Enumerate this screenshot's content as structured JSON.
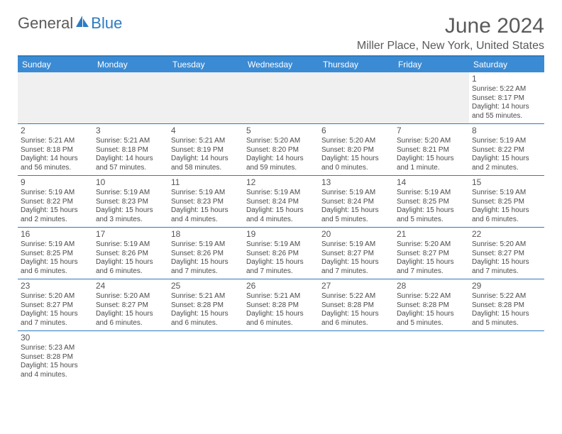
{
  "logo": {
    "text1": "General",
    "text2": "Blue",
    "sail_color": "#2d7bc0"
  },
  "title": "June 2024",
  "location": "Miller Place, New York, United States",
  "header_bg": "#3b8bd4",
  "border_color": "#2d7bc0",
  "days_of_week": [
    "Sunday",
    "Monday",
    "Tuesday",
    "Wednesday",
    "Thursday",
    "Friday",
    "Saturday"
  ],
  "weeks": [
    [
      null,
      null,
      null,
      null,
      null,
      null,
      {
        "n": "1",
        "sr": "Sunrise: 5:22 AM",
        "ss": "Sunset: 8:17 PM",
        "dl": "Daylight: 14 hours and 55 minutes."
      }
    ],
    [
      {
        "n": "2",
        "sr": "Sunrise: 5:21 AM",
        "ss": "Sunset: 8:18 PM",
        "dl": "Daylight: 14 hours and 56 minutes."
      },
      {
        "n": "3",
        "sr": "Sunrise: 5:21 AM",
        "ss": "Sunset: 8:18 PM",
        "dl": "Daylight: 14 hours and 57 minutes."
      },
      {
        "n": "4",
        "sr": "Sunrise: 5:21 AM",
        "ss": "Sunset: 8:19 PM",
        "dl": "Daylight: 14 hours and 58 minutes."
      },
      {
        "n": "5",
        "sr": "Sunrise: 5:20 AM",
        "ss": "Sunset: 8:20 PM",
        "dl": "Daylight: 14 hours and 59 minutes."
      },
      {
        "n": "6",
        "sr": "Sunrise: 5:20 AM",
        "ss": "Sunset: 8:20 PM",
        "dl": "Daylight: 15 hours and 0 minutes."
      },
      {
        "n": "7",
        "sr": "Sunrise: 5:20 AM",
        "ss": "Sunset: 8:21 PM",
        "dl": "Daylight: 15 hours and 1 minute."
      },
      {
        "n": "8",
        "sr": "Sunrise: 5:19 AM",
        "ss": "Sunset: 8:22 PM",
        "dl": "Daylight: 15 hours and 2 minutes."
      }
    ],
    [
      {
        "n": "9",
        "sr": "Sunrise: 5:19 AM",
        "ss": "Sunset: 8:22 PM",
        "dl": "Daylight: 15 hours and 2 minutes."
      },
      {
        "n": "10",
        "sr": "Sunrise: 5:19 AM",
        "ss": "Sunset: 8:23 PM",
        "dl": "Daylight: 15 hours and 3 minutes."
      },
      {
        "n": "11",
        "sr": "Sunrise: 5:19 AM",
        "ss": "Sunset: 8:23 PM",
        "dl": "Daylight: 15 hours and 4 minutes."
      },
      {
        "n": "12",
        "sr": "Sunrise: 5:19 AM",
        "ss": "Sunset: 8:24 PM",
        "dl": "Daylight: 15 hours and 4 minutes."
      },
      {
        "n": "13",
        "sr": "Sunrise: 5:19 AM",
        "ss": "Sunset: 8:24 PM",
        "dl": "Daylight: 15 hours and 5 minutes."
      },
      {
        "n": "14",
        "sr": "Sunrise: 5:19 AM",
        "ss": "Sunset: 8:25 PM",
        "dl": "Daylight: 15 hours and 5 minutes."
      },
      {
        "n": "15",
        "sr": "Sunrise: 5:19 AM",
        "ss": "Sunset: 8:25 PM",
        "dl": "Daylight: 15 hours and 6 minutes."
      }
    ],
    [
      {
        "n": "16",
        "sr": "Sunrise: 5:19 AM",
        "ss": "Sunset: 8:25 PM",
        "dl": "Daylight: 15 hours and 6 minutes."
      },
      {
        "n": "17",
        "sr": "Sunrise: 5:19 AM",
        "ss": "Sunset: 8:26 PM",
        "dl": "Daylight: 15 hours and 6 minutes."
      },
      {
        "n": "18",
        "sr": "Sunrise: 5:19 AM",
        "ss": "Sunset: 8:26 PM",
        "dl": "Daylight: 15 hours and 7 minutes."
      },
      {
        "n": "19",
        "sr": "Sunrise: 5:19 AM",
        "ss": "Sunset: 8:26 PM",
        "dl": "Daylight: 15 hours and 7 minutes."
      },
      {
        "n": "20",
        "sr": "Sunrise: 5:19 AM",
        "ss": "Sunset: 8:27 PM",
        "dl": "Daylight: 15 hours and 7 minutes."
      },
      {
        "n": "21",
        "sr": "Sunrise: 5:20 AM",
        "ss": "Sunset: 8:27 PM",
        "dl": "Daylight: 15 hours and 7 minutes."
      },
      {
        "n": "22",
        "sr": "Sunrise: 5:20 AM",
        "ss": "Sunset: 8:27 PM",
        "dl": "Daylight: 15 hours and 7 minutes."
      }
    ],
    [
      {
        "n": "23",
        "sr": "Sunrise: 5:20 AM",
        "ss": "Sunset: 8:27 PM",
        "dl": "Daylight: 15 hours and 7 minutes."
      },
      {
        "n": "24",
        "sr": "Sunrise: 5:20 AM",
        "ss": "Sunset: 8:27 PM",
        "dl": "Daylight: 15 hours and 6 minutes."
      },
      {
        "n": "25",
        "sr": "Sunrise: 5:21 AM",
        "ss": "Sunset: 8:28 PM",
        "dl": "Daylight: 15 hours and 6 minutes."
      },
      {
        "n": "26",
        "sr": "Sunrise: 5:21 AM",
        "ss": "Sunset: 8:28 PM",
        "dl": "Daylight: 15 hours and 6 minutes."
      },
      {
        "n": "27",
        "sr": "Sunrise: 5:22 AM",
        "ss": "Sunset: 8:28 PM",
        "dl": "Daylight: 15 hours and 6 minutes."
      },
      {
        "n": "28",
        "sr": "Sunrise: 5:22 AM",
        "ss": "Sunset: 8:28 PM",
        "dl": "Daylight: 15 hours and 5 minutes."
      },
      {
        "n": "29",
        "sr": "Sunrise: 5:22 AM",
        "ss": "Sunset: 8:28 PM",
        "dl": "Daylight: 15 hours and 5 minutes."
      }
    ],
    [
      {
        "n": "30",
        "sr": "Sunrise: 5:23 AM",
        "ss": "Sunset: 8:28 PM",
        "dl": "Daylight: 15 hours and 4 minutes."
      },
      null,
      null,
      null,
      null,
      null,
      null
    ]
  ]
}
